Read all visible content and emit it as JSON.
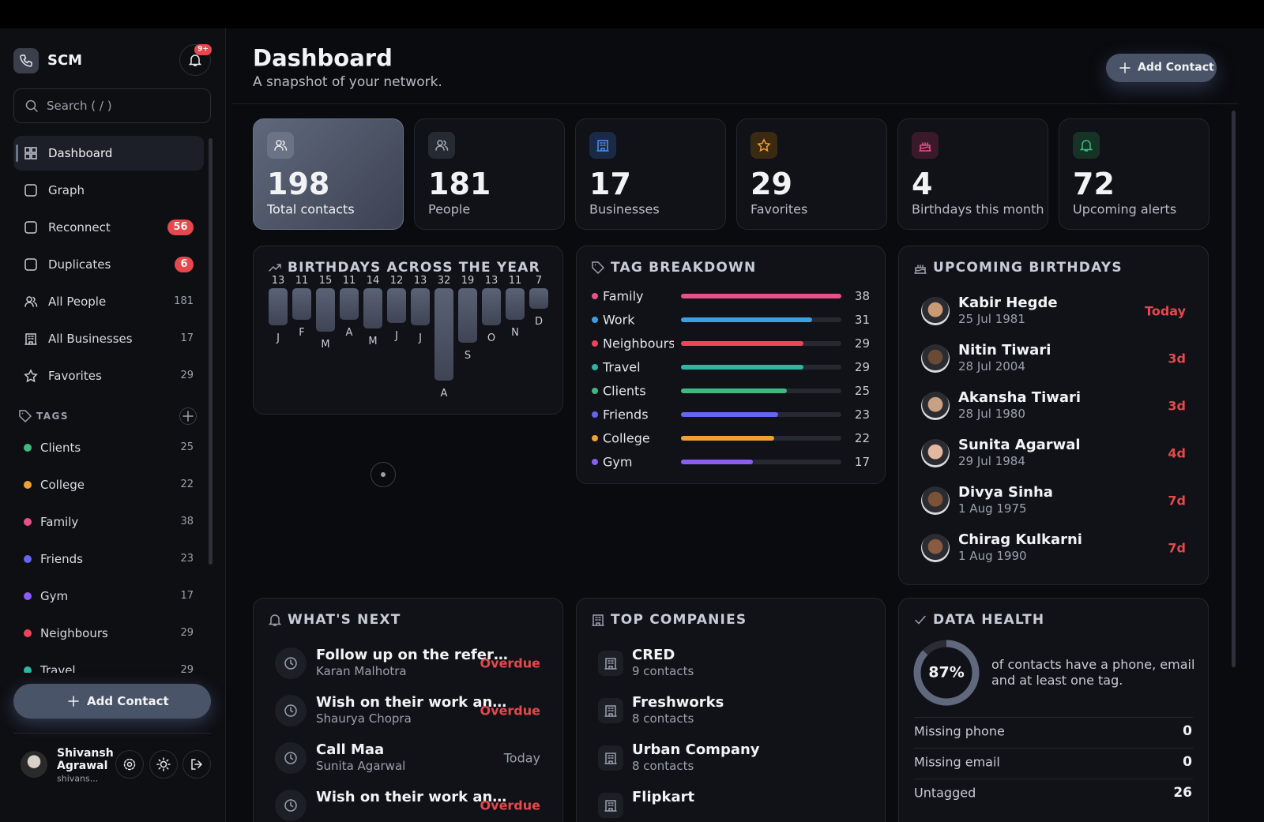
{
  "app": {
    "name": "SCM",
    "notification_badge": "9+",
    "search_placeholder": "Search ( / )",
    "add_contact": "Add Contact"
  },
  "nav": [
    {
      "label": "Dashboard"
    },
    {
      "label": "Graph"
    },
    {
      "label": "Reconnect",
      "badge": 56
    },
    {
      "label": "Duplicates",
      "badge": 6
    },
    {
      "label": "All People",
      "count": 181
    },
    {
      "label": "All Businesses",
      "count": 17
    },
    {
      "label": "Favorites",
      "count": 29
    }
  ],
  "tags_heading": "TAGS",
  "tags": [
    {
      "name": "Clients",
      "count": 25,
      "color": "#3fb97f"
    },
    {
      "name": "College",
      "count": 22,
      "color": "#f0a030"
    },
    {
      "name": "Family",
      "count": 38,
      "color": "#e8508a"
    },
    {
      "name": "Friends",
      "count": 23,
      "color": "#6366f1"
    },
    {
      "name": "Gym",
      "count": 17,
      "color": "#8b5cf6"
    },
    {
      "name": "Neighbours",
      "count": 29,
      "color": "#ef4458"
    },
    {
      "name": "Travel",
      "count": 29,
      "color": "#2fb5a0"
    }
  ],
  "user": {
    "name": "Shivansh Agrawal",
    "email": "shivans..."
  },
  "header": {
    "title": "Dashboard",
    "subtitle": "A snapshot of your network.",
    "add_contact": "Add Contact"
  },
  "stats": [
    {
      "value": 198,
      "label": "Total contacts"
    },
    {
      "value": 181,
      "label": "People"
    },
    {
      "value": 17,
      "label": "Businesses"
    },
    {
      "value": 29,
      "label": "Favorites"
    },
    {
      "value": 4,
      "label": "Birthdays this month"
    },
    {
      "value": 72,
      "label": "Upcoming alerts"
    }
  ],
  "birthdays_chart": {
    "type": "bar",
    "title": "BIRTHDAYS ACROSS THE YEAR",
    "categories": [
      "J",
      "F",
      "M",
      "A",
      "M",
      "J",
      "J",
      "A",
      "S",
      "O",
      "N",
      "D"
    ],
    "values": [
      13,
      11,
      15,
      11,
      14,
      12,
      13,
      32,
      19,
      13,
      11,
      7
    ]
  },
  "tag_breakdown": {
    "title": "TAG BREAKDOWN",
    "items": [
      {
        "name": "Family",
        "value": 38,
        "color": "#e8508a"
      },
      {
        "name": "Work",
        "value": 31,
        "color": "#3aa0e0"
      },
      {
        "name": "Neighbours",
        "value": 29,
        "color": "#ef4458"
      },
      {
        "name": "Travel",
        "value": 29,
        "color": "#2fb5a0"
      },
      {
        "name": "Clients",
        "value": 25,
        "color": "#3fb97f"
      },
      {
        "name": "Friends",
        "value": 23,
        "color": "#6366f1"
      },
      {
        "name": "College",
        "value": 22,
        "color": "#f0a030"
      },
      {
        "name": "Gym",
        "value": 17,
        "color": "#8b5cf6"
      }
    ]
  },
  "upcoming_birthdays": {
    "title": "UPCOMING BIRTHDAYS",
    "people": [
      {
        "name": "Kabir Hegde",
        "date": "25 Jul 1981",
        "when": "Today"
      },
      {
        "name": "Nitin Tiwari",
        "date": "28 Jul 2004",
        "when": "3d"
      },
      {
        "name": "Akansha Tiwari",
        "date": "28 Jul 1980",
        "when": "3d"
      },
      {
        "name": "Sunita Agarwal",
        "date": "29 Jul 1984",
        "when": "4d"
      },
      {
        "name": "Divya Sinha",
        "date": "1 Aug 1975",
        "when": "7d"
      },
      {
        "name": "Chirag Kulkarni",
        "date": "1 Aug 1990",
        "when": "7d"
      }
    ]
  },
  "whats_next": {
    "title": "WHAT'S NEXT",
    "items": [
      {
        "title": "Follow up on the refer…",
        "person": "Karan Malhotra",
        "status": "Overdue"
      },
      {
        "title": "Wish on their work an…",
        "person": "Shaurya Chopra",
        "status": "Overdue"
      },
      {
        "title": "Call Maa",
        "person": "Sunita Agarwal",
        "status": "Today"
      },
      {
        "title": "Wish on their work an…",
        "status": "Overdue"
      }
    ]
  },
  "top_companies": {
    "title": "TOP COMPANIES",
    "items": [
      {
        "name": "CRED",
        "count": "9 contacts"
      },
      {
        "name": "Freshworks",
        "count": "8 contacts"
      },
      {
        "name": "Urban Company",
        "count": "8 contacts"
      },
      {
        "name": "Flipkart"
      }
    ]
  },
  "data_health": {
    "title": "DATA HEALTH",
    "percent": {
      "value": 87,
      "label": "87%"
    },
    "description": "of contacts have a phone, email and at least one tag.",
    "rows": [
      {
        "label": "Missing phone",
        "value": 0
      },
      {
        "label": "Missing email",
        "value": 0
      },
      {
        "label": "Untagged",
        "value": 26
      }
    ]
  }
}
